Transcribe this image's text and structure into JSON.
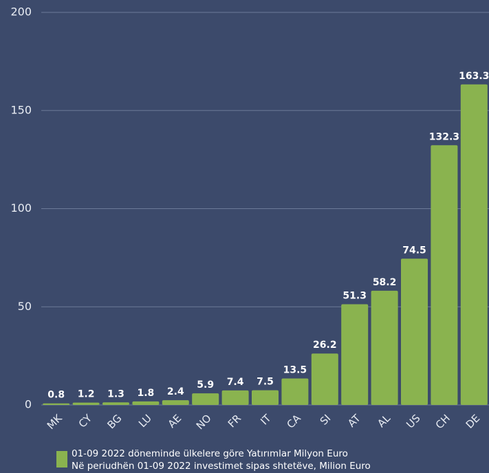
{
  "chart_data": {
    "type": "bar",
    "categories": [
      "MK",
      "CY",
      "BG",
      "LU",
      "AE",
      "NO",
      "FR",
      "IT",
      "CA",
      "SI",
      "AT",
      "AL",
      "US",
      "CH",
      "DE"
    ],
    "series": [
      {
        "name": "01-09 2022 döneminde ülkelere göre Yatırımlar  Milyon Euro",
        "color": "#8ab34f",
        "values": [
          0.8,
          1.2,
          1.3,
          1.8,
          2.4,
          5.9,
          7.4,
          7.5,
          13.5,
          26.2,
          51.3,
          58.2,
          74.5,
          132.3,
          163.3
        ]
      }
    ],
    "legend_subtitle": "Në periudhën 01-09 2022 investimet sipas shtetëve, Milion Euro",
    "ylim": [
      0,
      200
    ],
    "yticks": [
      0,
      50,
      100,
      150,
      200
    ],
    "grid": true
  }
}
